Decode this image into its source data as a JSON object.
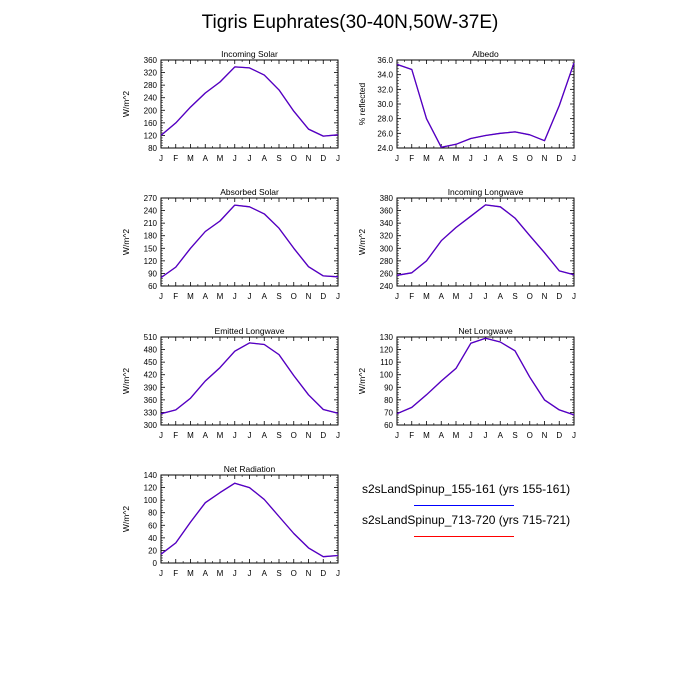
{
  "title": "Tigris Euphrates(30-40N,50W-37E)",
  "months": [
    "J",
    "F",
    "M",
    "A",
    "M",
    "J",
    "J",
    "A",
    "S",
    "O",
    "N",
    "D",
    "J"
  ],
  "colors": {
    "series_a": "#0000ff",
    "series_b": "#ff0000",
    "overlap": "#4b00cc"
  },
  "legend": {
    "series_a": "s2sLandSpinup_155-161 (yrs 155-161)",
    "series_b": "s2sLandSpinup_713-720 (yrs 715-721)"
  },
  "chart_data": [
    {
      "type": "line",
      "title": "Incoming Solar",
      "ylabel": "W/m^2",
      "ylim": [
        80,
        360
      ],
      "yticks": [
        "80",
        "120",
        "160",
        "200",
        "240",
        "280",
        "320",
        "360"
      ],
      "series": [
        {
          "name": "s2sLandSpinup_155-161 (yrs 155-161)",
          "values": [
            120,
            160,
            210,
            255,
            290,
            338,
            335,
            312,
            265,
            197,
            140,
            118,
            122
          ]
        },
        {
          "name": "s2sLandSpinup_713-720 (yrs 715-721)",
          "values": [
            120,
            160,
            210,
            255,
            290,
            338,
            335,
            312,
            265,
            197,
            140,
            118,
            122
          ]
        }
      ]
    },
    {
      "type": "line",
      "title": "Albedo",
      "ylabel": "% reflected",
      "ylim": [
        24,
        36
      ],
      "yticks": [
        "24.0",
        "26.0",
        "28.0",
        "30.0",
        "32.0",
        "34.0",
        "36.0"
      ],
      "series": [
        {
          "name": "s2sLandSpinup_155-161 (yrs 155-161)",
          "values": [
            35.4,
            34.7,
            28.0,
            24.1,
            24.5,
            25.3,
            25.7,
            26.0,
            26.2,
            25.8,
            25.0,
            29.8,
            35.6
          ]
        },
        {
          "name": "s2sLandSpinup_713-720 (yrs 715-721)",
          "values": [
            35.4,
            34.7,
            28.0,
            24.1,
            24.5,
            25.3,
            25.7,
            26.0,
            26.2,
            25.8,
            25.0,
            29.8,
            35.6
          ]
        }
      ]
    },
    {
      "type": "line",
      "title": "Absorbed Solar",
      "ylabel": "W/m^2",
      "ylim": [
        60,
        270
      ],
      "yticks": [
        "60",
        "90",
        "120",
        "150",
        "180",
        "210",
        "240",
        "270"
      ],
      "series": [
        {
          "name": "s2sLandSpinup_155-161 (yrs 155-161)",
          "values": [
            80,
            105,
            150,
            190,
            215,
            253,
            249,
            232,
            198,
            150,
            106,
            84,
            82
          ]
        },
        {
          "name": "s2sLandSpinup_713-720 (yrs 715-721)",
          "values": [
            80,
            105,
            150,
            190,
            215,
            253,
            249,
            232,
            198,
            150,
            106,
            84,
            82
          ]
        }
      ]
    },
    {
      "type": "line",
      "title": "Incoming Longwave",
      "ylabel": "W/m^2",
      "ylim": [
        240,
        380
      ],
      "yticks": [
        "240",
        "260",
        "280",
        "300",
        "320",
        "340",
        "360",
        "380"
      ],
      "series": [
        {
          "name": "s2sLandSpinup_155-161 (yrs 155-161)",
          "values": [
            257,
            261,
            280,
            312,
            333,
            351,
            369,
            366,
            348,
            320,
            293,
            264,
            258
          ]
        },
        {
          "name": "s2sLandSpinup_713-720 (yrs 715-721)",
          "values": [
            257,
            261,
            280,
            312,
            333,
            351,
            369,
            366,
            348,
            320,
            293,
            264,
            258
          ]
        }
      ]
    },
    {
      "type": "line",
      "title": "Emitted Longwave",
      "ylabel": "W/m^2",
      "ylim": [
        300,
        510
      ],
      "yticks": [
        "300",
        "330",
        "360",
        "390",
        "420",
        "450",
        "480",
        "510"
      ],
      "series": [
        {
          "name": "s2sLandSpinup_155-161 (yrs 155-161)",
          "values": [
            327,
            336,
            364,
            405,
            437,
            476,
            496,
            492,
            468,
            418,
            372,
            337,
            328
          ]
        },
        {
          "name": "s2sLandSpinup_713-720 (yrs 715-721)",
          "values": [
            327,
            336,
            364,
            405,
            437,
            476,
            496,
            492,
            468,
            418,
            372,
            337,
            328
          ]
        }
      ]
    },
    {
      "type": "line",
      "title": "Net Longwave",
      "ylabel": "W/m^2",
      "ylim": [
        60,
        130
      ],
      "yticks": [
        "60",
        "70",
        "80",
        "90",
        "100",
        "110",
        "120",
        "130"
      ],
      "series": [
        {
          "name": "s2sLandSpinup_155-161 (yrs 155-161)",
          "values": [
            69,
            74,
            84,
            95,
            105,
            125,
            129,
            126,
            119,
            98,
            80,
            72,
            68
          ]
        },
        {
          "name": "s2sLandSpinup_713-720 (yrs 715-721)",
          "values": [
            69,
            74,
            84,
            95,
            105,
            125,
            129,
            126,
            119,
            98,
            80,
            72,
            68
          ]
        }
      ]
    },
    {
      "type": "line",
      "title": "Net Radiation",
      "ylabel": "W/m^2",
      "ylim": [
        0,
        140
      ],
      "yticks": [
        "0",
        "20",
        "40",
        "60",
        "80",
        "100",
        "120",
        "140"
      ],
      "series": [
        {
          "name": "s2sLandSpinup_155-161 (yrs 155-161)",
          "values": [
            14,
            32,
            65,
            96,
            112,
            127,
            120,
            101,
            74,
            47,
            24,
            10,
            12
          ]
        },
        {
          "name": "s2sLandSpinup_713-720 (yrs 715-721)",
          "values": [
            14,
            32,
            65,
            96,
            112,
            127,
            120,
            101,
            74,
            47,
            24,
            10,
            12
          ]
        }
      ]
    }
  ]
}
